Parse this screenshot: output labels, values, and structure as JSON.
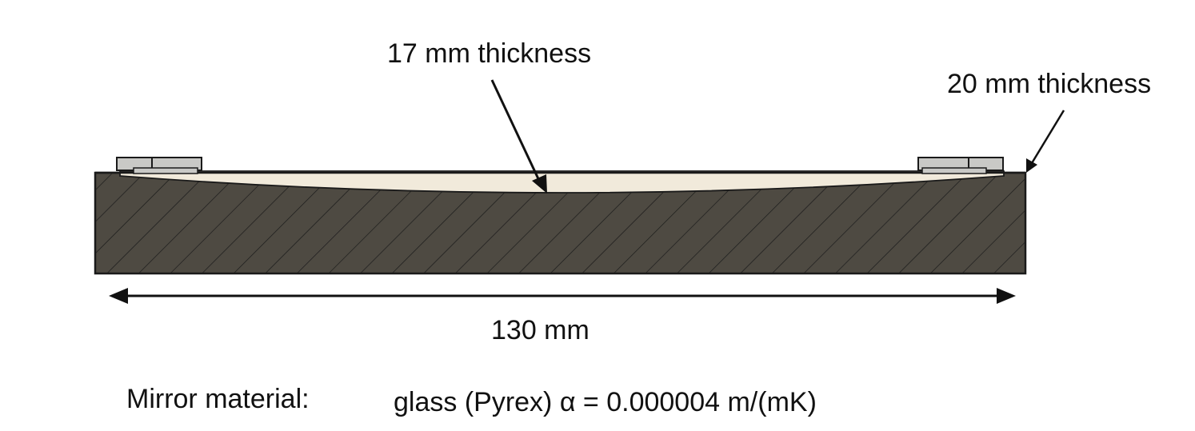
{
  "annotations": {
    "center_thickness": "17 mm thickness",
    "edge_thickness": "20 mm thickness",
    "width": "130 mm"
  },
  "material": {
    "label": "Mirror material:",
    "value": "glass (Pyrex) α = 0.000004 m/(mK)"
  },
  "colors": {
    "mount_fill": "#4e4a42",
    "mirror_surface": "#f1eadb",
    "clamp_fill": "#c9c9c6",
    "outline": "#1a1a1a"
  }
}
